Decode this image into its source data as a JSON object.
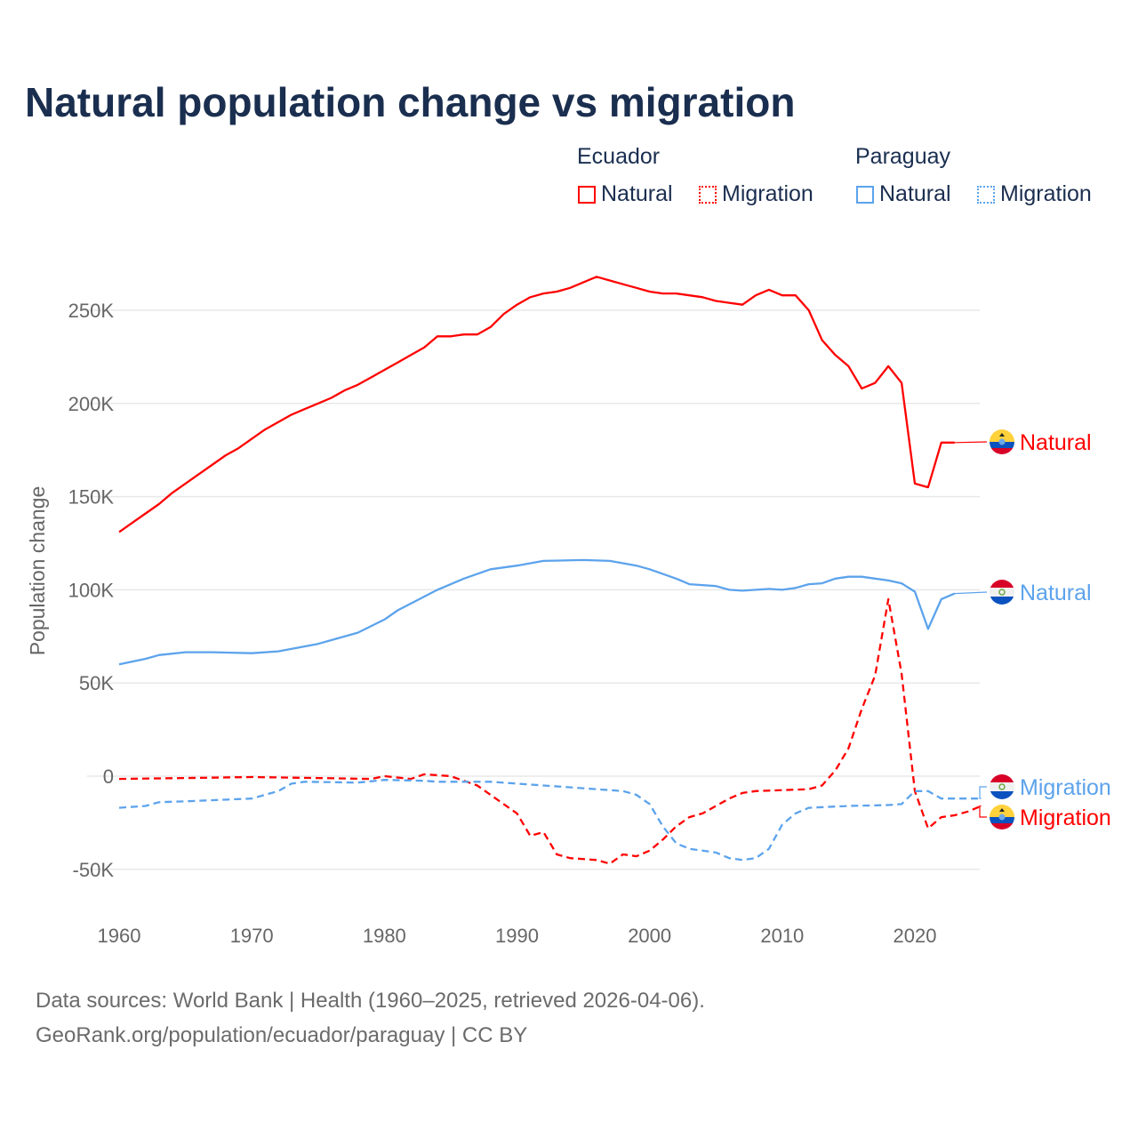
{
  "title": "Natural population change vs migration",
  "legend": {
    "groups": [
      {
        "name": "Ecuador",
        "items": [
          "Natural",
          "Migration"
        ],
        "color": "#ff0000"
      },
      {
        "name": "Paraguay",
        "items": [
          "Natural",
          "Migration"
        ],
        "color": "#5ca3ec"
      }
    ]
  },
  "source": {
    "line1": "Data sources: World Bank | Health (1960–2025, retrieved 2026-04-06).",
    "line2": "GeoRank.org/population/ecuador/paraguay | CC BY"
  },
  "chart_data": {
    "type": "line",
    "title": "Natural population change vs migration",
    "xlabel": "",
    "ylabel": "Population change",
    "xlim": [
      1960,
      2025
    ],
    "ylim": [
      -60000,
      280000
    ],
    "x_ticks": [
      "1960",
      "1970",
      "1980",
      "1990",
      "2000",
      "2010",
      "2020"
    ],
    "y_ticks": [
      {
        "v": 250,
        "label": "250K"
      },
      {
        "v": 200,
        "label": "200K"
      },
      {
        "v": 150,
        "label": "150K"
      },
      {
        "v": 100,
        "label": "100K"
      },
      {
        "v": 50,
        "label": "50K"
      },
      {
        "v": 0,
        "label": "0"
      },
      {
        "v": -50,
        "label": "-50K"
      }
    ],
    "units": "thousands",
    "series": [
      {
        "name": "Ecuador Natural",
        "label": "Natural",
        "country": "Ecuador",
        "color": "#ff0000",
        "dash": "solid",
        "x": [
          1960,
          1961,
          1962,
          1963,
          1964,
          1965,
          1966,
          1967,
          1968,
          1969,
          1970,
          1971,
          1972,
          1973,
          1974,
          1975,
          1976,
          1977,
          1978,
          1979,
          1980,
          1981,
          1982,
          1983,
          1984,
          1985,
          1986,
          1987,
          1988,
          1989,
          1990,
          1991,
          1992,
          1993,
          1994,
          1995,
          1996,
          1997,
          1998,
          1999,
          2000,
          2001,
          2002,
          2003,
          2004,
          2005,
          2006,
          2007,
          2008,
          2009,
          2010,
          2011,
          2012,
          2013,
          2014,
          2015,
          2016,
          2017,
          2018,
          2019,
          2020,
          2021,
          2022,
          2023
        ],
        "values": [
          131,
          136,
          141,
          146,
          152,
          157,
          162,
          167,
          172,
          176,
          181,
          186,
          190,
          194,
          197,
          200,
          203,
          207,
          210,
          214,
          218,
          222,
          226,
          230,
          236,
          236,
          237,
          237,
          241,
          248,
          253,
          257,
          259,
          260,
          262,
          265,
          268,
          266,
          264,
          262,
          260,
          259,
          259,
          258,
          257,
          255,
          254,
          253,
          258,
          261,
          258,
          258,
          250,
          234,
          226,
          220,
          208,
          211,
          220,
          211,
          157,
          155,
          179,
          179
        ]
      },
      {
        "name": "Paraguay Natural",
        "label": "Natural",
        "country": "Paraguay",
        "color": "#5ca3ec",
        "dash": "solid",
        "x": [
          1960,
          1962,
          1963,
          1965,
          1967,
          1970,
          1972,
          1975,
          1978,
          1980,
          1981,
          1984,
          1986,
          1988,
          1990,
          1992,
          1995,
          1997,
          1999,
          2000,
          2002,
          2003,
          2005,
          2006,
          2007,
          2009,
          2010,
          2011,
          2012,
          2013,
          2014,
          2015,
          2016,
          2017,
          2018,
          2019,
          2020,
          2021,
          2022,
          2023
        ],
        "values": [
          60,
          63,
          65,
          66.5,
          66.5,
          66,
          67,
          71,
          77,
          84,
          89,
          100,
          106,
          111,
          113,
          115.5,
          116,
          115.5,
          113,
          111,
          106,
          103,
          102,
          100,
          99.5,
          100.5,
          100,
          101,
          103,
          103.5,
          106,
          107,
          107,
          106,
          105,
          103.5,
          99,
          79,
          95,
          98
        ]
      },
      {
        "name": "Ecuador Migration",
        "label": "Migration",
        "country": "Ecuador",
        "color": "#ff0000",
        "dash": "dashed",
        "x": [
          1960,
          1965,
          1970,
          1975,
          1979,
          1980,
          1982,
          1983,
          1985,
          1987,
          1988,
          1990,
          1991,
          1992,
          1993,
          1994,
          1996,
          1997,
          1998,
          1999,
          2000,
          2001,
          2002,
          2003,
          2004,
          2005,
          2006,
          2007,
          2008,
          2010,
          2012,
          2013,
          2014,
          2015,
          2016,
          2017,
          2018,
          2019,
          2020,
          2021,
          2022,
          2023,
          2024,
          2025
        ],
        "values": [
          -1.5,
          -1,
          -0.5,
          -1,
          -1.5,
          0,
          -1.5,
          1,
          0,
          -5,
          -10,
          -20,
          -32,
          -30,
          -42,
          -44,
          -45,
          -47,
          -42,
          -43,
          -40,
          -34,
          -27,
          -22,
          -20,
          -16,
          -12,
          -9,
          -8,
          -7.5,
          -7,
          -5,
          3,
          15,
          36,
          54,
          95,
          55,
          -8,
          -28,
          -22,
          -21,
          -19,
          -16
        ]
      },
      {
        "name": "Paraguay Migration",
        "label": "Migration",
        "country": "Paraguay",
        "color": "#5ca3ec",
        "dash": "dashed",
        "x": [
          1960,
          1962,
          1963,
          1965,
          1970,
          1972,
          1973,
          1974,
          1978,
          1980,
          1983,
          1984,
          1988,
          1990,
          1992,
          1995,
          1998,
          1999,
          2000,
          2001,
          2002,
          2003,
          2005,
          2006,
          2007,
          2008,
          2009,
          2010,
          2011,
          2012,
          2015,
          2018,
          2019,
          2020,
          2021,
          2022,
          2025
        ],
        "values": [
          -17,
          -16,
          -14,
          -13.5,
          -12,
          -8,
          -4,
          -3,
          -3.5,
          -2,
          -2.5,
          -3,
          -3,
          -4,
          -5,
          -6.5,
          -8,
          -10,
          -15,
          -27,
          -36,
          -39,
          -41,
          -44,
          -45,
          -44,
          -39,
          -26,
          -20,
          -17,
          -16,
          -15.5,
          -15,
          -8,
          -8,
          -12,
          -12
        ]
      }
    ]
  }
}
